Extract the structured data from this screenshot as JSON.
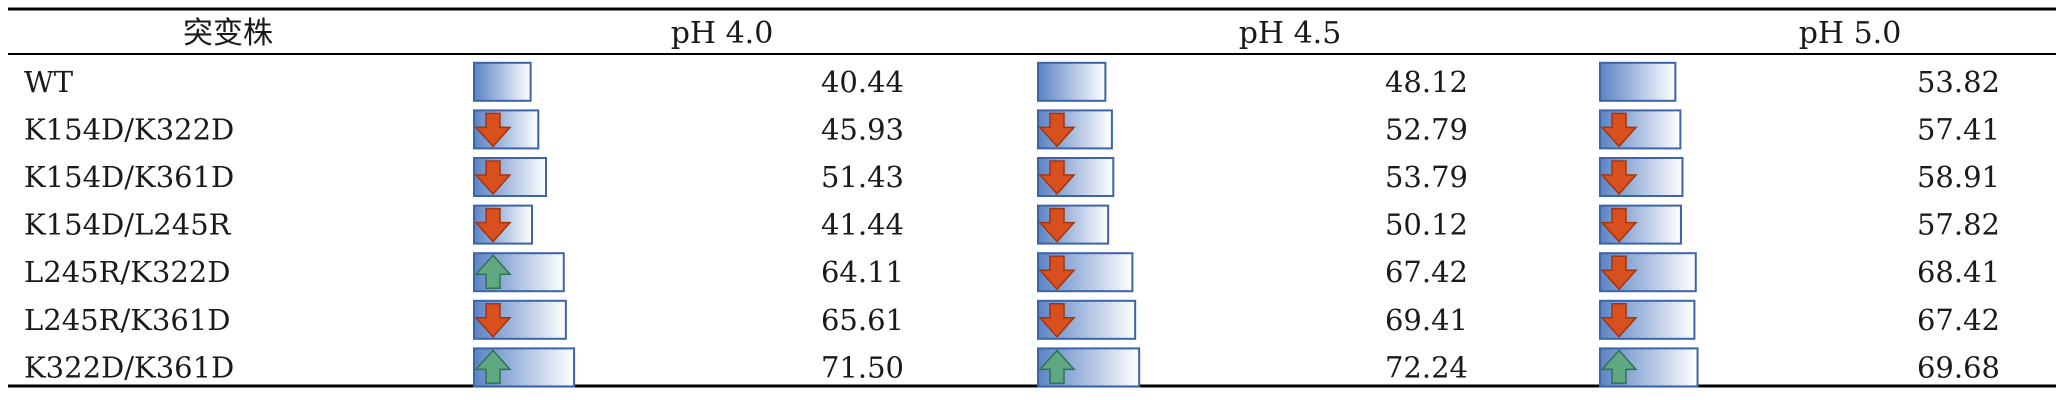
{
  "table": {
    "header": {
      "strain": "突变株",
      "columns": [
        "pH 4.0",
        "pH 4.5",
        "pH 5.0"
      ]
    },
    "rows": [
      {
        "name": "WT",
        "values": [
          "40.44",
          "48.12",
          "53.82"
        ],
        "icons": [
          "none",
          "none",
          "none"
        ]
      },
      {
        "name": "K154D/K322D",
        "values": [
          "45.93",
          "52.79",
          "57.41"
        ],
        "icons": [
          "down-arrow",
          "down-arrow",
          "down-arrow"
        ]
      },
      {
        "name": "K154D/K361D",
        "values": [
          "51.43",
          "53.79",
          "58.91"
        ],
        "icons": [
          "down-arrow",
          "down-arrow",
          "down-arrow"
        ]
      },
      {
        "name": "K154D/L245R",
        "values": [
          "41.44",
          "50.12",
          "57.82"
        ],
        "icons": [
          "down-arrow",
          "down-arrow",
          "down-arrow"
        ]
      },
      {
        "name": "L245R/K322D",
        "values": [
          "64.11",
          "67.42",
          "68.41"
        ],
        "icons": [
          "up-arrow",
          "down-arrow",
          "down-arrow"
        ]
      },
      {
        "name": "L245R/K361D",
        "values": [
          "65.61",
          "69.41",
          "67.42"
        ],
        "icons": [
          "down-arrow",
          "down-arrow",
          "down-arrow"
        ]
      },
      {
        "name": "K322D/K361D",
        "values": [
          "71.50",
          "72.24",
          "69.68"
        ],
        "icons": [
          "up-arrow",
          "up-arrow",
          "up-arrow"
        ]
      }
    ]
  },
  "chart_data": {
    "type": "table",
    "categories": [
      "WT",
      "K154D/K322D",
      "K154D/K361D",
      "K154D/L245R",
      "L245R/K322D",
      "L245R/K361D",
      "K322D/K361D"
    ],
    "series": [
      {
        "name": "pH 4.0",
        "values": [
          40.44,
          45.93,
          51.43,
          41.44,
          64.11,
          65.61,
          71.5
        ]
      },
      {
        "name": "pH 4.5",
        "values": [
          48.12,
          52.79,
          53.79,
          50.12,
          67.42,
          69.41,
          72.24
        ]
      },
      {
        "name": "pH 5.0",
        "values": [
          53.82,
          57.41,
          58.91,
          57.82,
          68.41,
          67.42,
          69.68
        ]
      }
    ],
    "bar_style": "data-bars with icon-set arrows"
  },
  "colors": {
    "bar_start": "#5b83c4",
    "bar_end": "#ffffff",
    "bar_border": "#3d63a8",
    "arrow_down": "#d9501f",
    "arrow_up": "#5fa882",
    "rule": "#000000"
  }
}
